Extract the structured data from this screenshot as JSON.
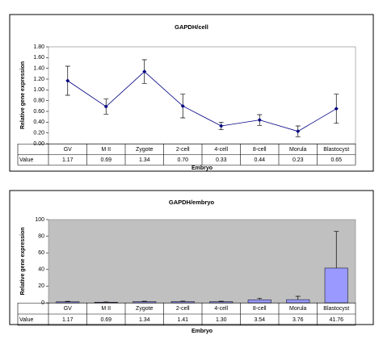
{
  "chart_data": [
    {
      "type": "line",
      "title": "GAPDH/cell",
      "y_label": "Relative gene expression",
      "x_label": "Embryo",
      "table_row_label": "Value",
      "categories": [
        "GV",
        "M II",
        "Zygote",
        "2-cell",
        "4-cell",
        "8-cell",
        "Morula",
        "Blastocyst"
      ],
      "values": [
        1.17,
        0.69,
        1.34,
        0.7,
        0.33,
        0.44,
        0.23,
        0.65
      ],
      "value_labels": [
        "1.17",
        "0.69",
        "1.34",
        "0.70",
        "0.33",
        "0.44",
        "0.23",
        "0.65"
      ],
      "errors": [
        0.27,
        0.14,
        0.22,
        0.22,
        0.07,
        0.1,
        0.1,
        0.27
      ],
      "color": "#000080",
      "ylim": [
        0,
        1.8
      ],
      "yticks": [
        {
          "value": 0,
          "label": "0.00"
        },
        {
          "value": 0.2,
          "label": "0.20"
        },
        {
          "value": 0.4,
          "label": "0.40"
        },
        {
          "value": 0.6,
          "label": "0.60"
        },
        {
          "value": 0.8,
          "label": "0.80"
        },
        {
          "value": 1,
          "label": "1.00"
        },
        {
          "value": 1.2,
          "label": "1.20"
        },
        {
          "value": 1.4,
          "label": "1.40"
        },
        {
          "value": 1.6,
          "label": "1.60"
        },
        {
          "value": 1.8,
          "label": "1.80"
        }
      ],
      "plot_background": "#ffffff"
    },
    {
      "type": "bar",
      "title": "GAPDH/embryo",
      "y_label": "Relative gene expression",
      "x_label": "Embryo",
      "table_row_label": "Value",
      "categories": [
        "GV",
        "M II",
        "Zygote",
        "2-cell",
        "4-cell",
        "8-cell",
        "Morula",
        "Blastocyst"
      ],
      "values": [
        1.17,
        0.69,
        1.34,
        1.41,
        1.3,
        3.54,
        3.76,
        41.76
      ],
      "value_labels": [
        "1.17",
        "0.69",
        "1.34",
        "1.41",
        "1.30",
        "3.54",
        "3.76",
        "41.76"
      ],
      "errors": [
        0.5,
        0.3,
        0.5,
        0.5,
        0.5,
        2,
        4,
        44
      ],
      "color": "#9999ff",
      "ylim": [
        0,
        100
      ],
      "yticks": [
        0,
        20,
        40,
        60,
        80,
        100
      ],
      "plot_background": "#c0c0c0"
    }
  ]
}
